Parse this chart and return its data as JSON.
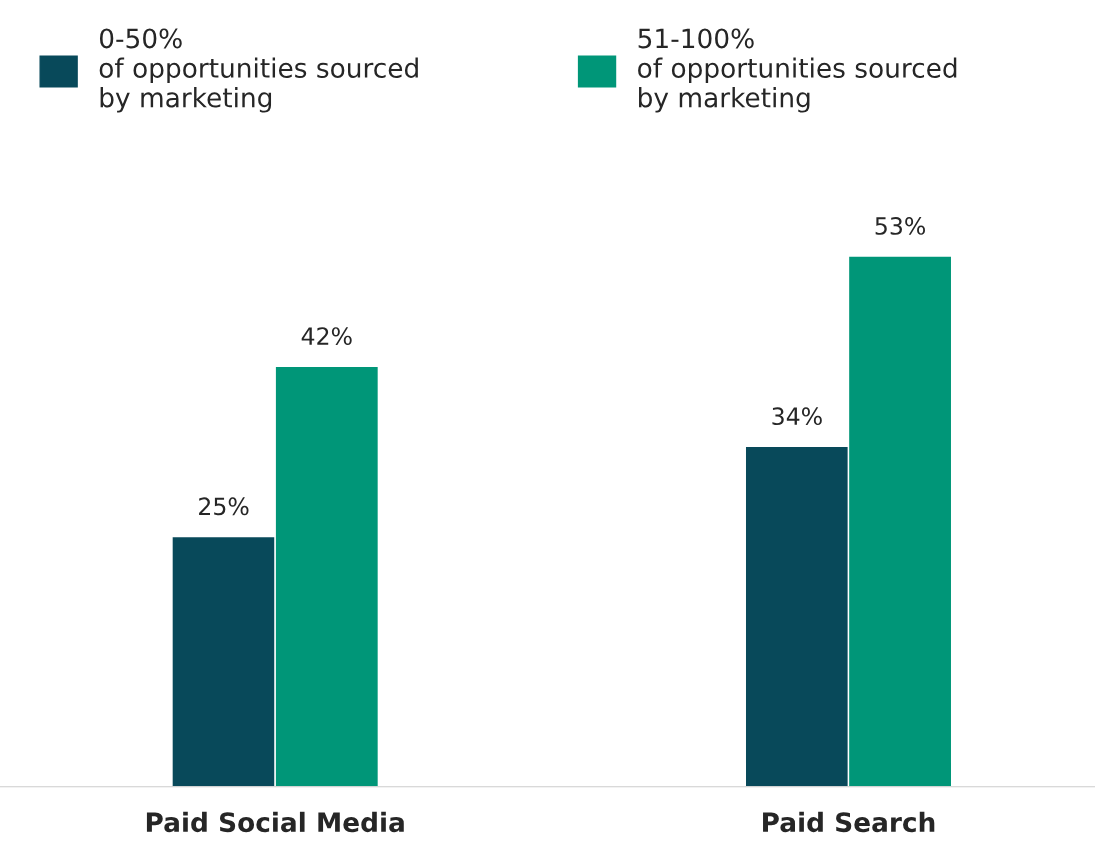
{
  "chart_data": {
    "type": "bar",
    "categories": [
      "Paid Social Media",
      "Paid Search"
    ],
    "series": [
      {
        "name": "0-50%\nof opportunities sourced\nby marketing",
        "color": "#08495a",
        "values": [
          25,
          34
        ],
        "value_labels": [
          "25%",
          "34%"
        ]
      },
      {
        "name": "51-100%\nof opportunities sourced\nby marketing",
        "color": "#009678",
        "values": [
          42,
          53
        ],
        "value_labels": [
          "42%",
          "53%"
        ]
      }
    ],
    "legend": "top"
  }
}
